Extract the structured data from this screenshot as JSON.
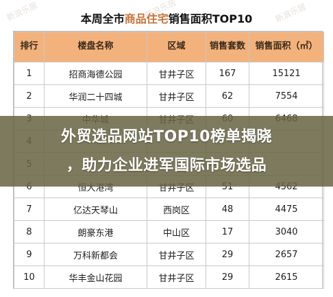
{
  "watermark": "新浪乐居",
  "title": {
    "prefix": "本周全市",
    "highlight": "商品住宅",
    "suffix": "销售面积TOP10"
  },
  "table": {
    "headers": [
      "排行",
      "楼盘名称",
      "区域",
      "销售套数",
      "销售面积（㎡）"
    ],
    "rows": [
      {
        "rank": "1",
        "name": "招商海德公园",
        "district": "甘井子区",
        "units": "167",
        "area": "15121"
      },
      {
        "rank": "2",
        "name": "华润二十四城",
        "district": "甘井子区",
        "units": "62",
        "area": "7554"
      },
      {
        "rank": "3",
        "name": "中华城",
        "district": "甘井子区",
        "units": "60",
        "area": "6468"
      },
      {
        "rank": "4",
        "name": "",
        "district": "",
        "units": "",
        "area": ""
      },
      {
        "rank": "5",
        "name": "",
        "district": "",
        "units": "",
        "area": ""
      },
      {
        "rank": "6",
        "name": "恒大港湾",
        "district": "甘井子区",
        "units": "51",
        "area": "4562"
      },
      {
        "rank": "7",
        "name": "亿达天琴山",
        "district": "西岗区",
        "units": "48",
        "area": "4475"
      },
      {
        "rank": "8",
        "name": "朗豪东港",
        "district": "中山区",
        "units": "17",
        "area": "3040"
      },
      {
        "rank": "9",
        "name": "万科新都会",
        "district": "甘井子区",
        "units": "29",
        "area": "2657"
      },
      {
        "rank": "10",
        "name": "华丰金山花园",
        "district": "甘井子区",
        "units": "29",
        "area": "2615"
      }
    ]
  },
  "banner": {
    "line1": "外贸选品网站TOP10榜单揭晓",
    "line2": "，助力企业进军国际市场选品"
  }
}
